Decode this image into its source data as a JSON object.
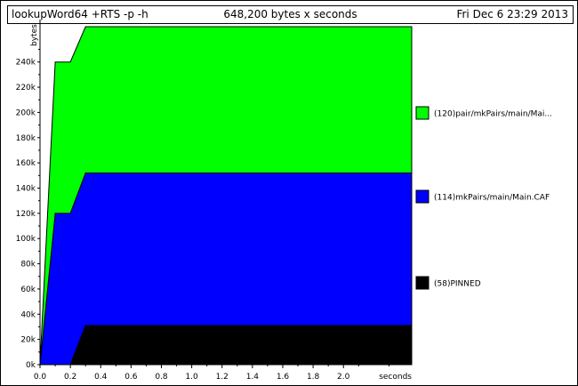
{
  "header": {
    "program": "lookupWord64 +RTS -p -h",
    "summary": "648,200 bytes x seconds",
    "date": "Fri Dec  6 23:29 2013"
  },
  "colors": {
    "pair": "#00ff00",
    "mkPairs": "#0000ff",
    "pinned": "#000000"
  },
  "chart_data": {
    "type": "area",
    "stacked": true,
    "title": "",
    "xlabel": "seconds",
    "ylabel": "bytes",
    "xlim": [
      0,
      2.45
    ],
    "ylim": [
      0,
      268000
    ],
    "x_ticks": [
      {
        "v": 0.0,
        "label": "0.0"
      },
      {
        "v": 0.2,
        "label": "0.2"
      },
      {
        "v": 0.4,
        "label": "0.4"
      },
      {
        "v": 0.6,
        "label": "0.6"
      },
      {
        "v": 0.8,
        "label": "0.8"
      },
      {
        "v": 1.0,
        "label": "1.0"
      },
      {
        "v": 1.2,
        "label": "1.2"
      },
      {
        "v": 1.4,
        "label": "1.4"
      },
      {
        "v": 1.6,
        "label": "1.6"
      },
      {
        "v": 1.8,
        "label": "1.8"
      },
      {
        "v": 2.0,
        "label": "2.0"
      }
    ],
    "y_ticks": [
      {
        "v": 0,
        "label": "0k"
      },
      {
        "v": 20000,
        "label": "20k"
      },
      {
        "v": 40000,
        "label": "40k"
      },
      {
        "v": 60000,
        "label": "60k"
      },
      {
        "v": 80000,
        "label": "80k"
      },
      {
        "v": 100000,
        "label": "100k"
      },
      {
        "v": 120000,
        "label": "120k"
      },
      {
        "v": 140000,
        "label": "140k"
      },
      {
        "v": 160000,
        "label": "160k"
      },
      {
        "v": 180000,
        "label": "180k"
      },
      {
        "v": 200000,
        "label": "200k"
      },
      {
        "v": 220000,
        "label": "220k"
      },
      {
        "v": 240000,
        "label": "240k"
      }
    ],
    "x": [
      0.0,
      0.1,
      0.2,
      0.3,
      2.45
    ],
    "series": [
      {
        "name": "(58)PINNED",
        "color": "#000000",
        "values": [
          0,
          0,
          0,
          31000,
          31000
        ]
      },
      {
        "name": "(114)mkPairs/main/Main.CAF",
        "color": "#0000ff",
        "values": [
          0,
          120000,
          120000,
          121000,
          121000
        ]
      },
      {
        "name": "(120)pair/mkPairs/main/Mai...",
        "color": "#00ff00",
        "values": [
          0,
          120000,
          120000,
          116000,
          116000
        ]
      }
    ],
    "legend_order": [
      "(120)pair/mkPairs/main/Mai...",
      "(114)mkPairs/main/Main.CAF",
      "(58)PINNED"
    ],
    "legend_position": "right",
    "grid": false
  }
}
